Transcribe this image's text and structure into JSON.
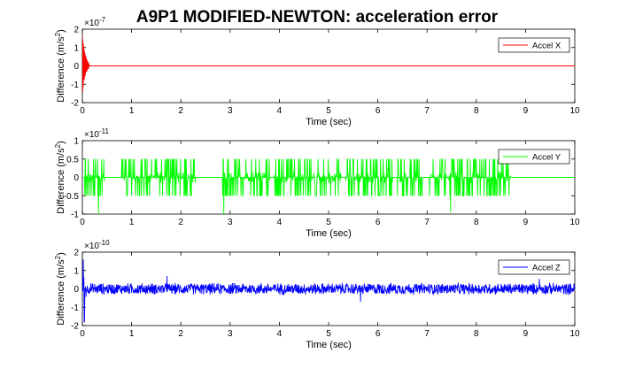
{
  "figure": {
    "title": "A9P1 MODIFIED-NEWTON: acceleration error"
  },
  "chart_data": [
    {
      "type": "line",
      "xlabel": "Time (sec)",
      "ylabel_main": "Difference (m/s",
      "ylabel_sup": "2",
      "ylabel_tail": ")",
      "exponent_label": "×10",
      "exponent_power": "-7",
      "xlim": [
        0,
        10
      ],
      "ylim": [
        -2,
        2
      ],
      "xticks": [
        "0",
        "1",
        "2",
        "3",
        "4",
        "5",
        "6",
        "7",
        "8",
        "9",
        "10"
      ],
      "yticks": [
        "-2",
        "-1",
        "0",
        "1",
        "2"
      ],
      "grid": false,
      "legend": "top-right",
      "series": [
        {
          "name": "Accel X",
          "color": "#ff0000",
          "pattern": "transient-decay",
          "x": [
            0,
            0.02,
            0.04,
            0.06,
            0.08,
            0.1,
            0.12,
            0.15,
            10
          ],
          "y": [
            -1.6,
            1.9,
            -1.5,
            1.2,
            -0.8,
            0.5,
            -0.2,
            0,
            0
          ]
        }
      ]
    },
    {
      "type": "line",
      "xlabel": "Time (sec)",
      "ylabel_main": "Difference (m/s",
      "ylabel_sup": "2",
      "ylabel_tail": ")",
      "exponent_label": "×10",
      "exponent_power": "-11",
      "xlim": [
        0,
        10
      ],
      "ylim": [
        -1,
        1
      ],
      "xticks": [
        "0",
        "1",
        "2",
        "3",
        "4",
        "5",
        "6",
        "7",
        "8",
        "9",
        "10"
      ],
      "yticks": [
        "-1",
        "-0.5",
        "0",
        "0.5",
        "1"
      ],
      "grid": false,
      "legend": "top-right",
      "series": [
        {
          "name": "Accel Y",
          "color": "#00ff00",
          "pattern": "intermittent-bursts",
          "amplitude": 0.5,
          "active_intervals": [
            [
              0.05,
              0.45
            ],
            [
              0.8,
              2.3
            ],
            [
              2.85,
              3.8
            ],
            [
              3.9,
              5.25
            ],
            [
              5.35,
              6.3
            ],
            [
              6.4,
              6.9
            ],
            [
              7.05,
              7.75
            ],
            [
              7.8,
              8.7
            ]
          ],
          "spikes": [
            {
              "x": 0.33,
              "y": -1.0
            },
            {
              "x": 2.87,
              "y": -1.0
            },
            {
              "x": 7.48,
              "y": -0.95
            }
          ],
          "zero_after": 8.7
        }
      ]
    },
    {
      "type": "line",
      "xlabel": "Time (sec)",
      "ylabel_main": "Difference (m/s",
      "ylabel_sup": "2",
      "ylabel_tail": ")",
      "exponent_label": "×10",
      "exponent_power": "-10",
      "xlim": [
        0,
        10
      ],
      "ylim": [
        -2,
        2
      ],
      "xticks": [
        "0",
        "1",
        "2",
        "3",
        "4",
        "5",
        "6",
        "7",
        "8",
        "9",
        "10"
      ],
      "yticks": [
        "-2",
        "-1",
        "0",
        "1",
        "2"
      ],
      "grid": false,
      "legend": "top-right",
      "series": [
        {
          "name": "Accel Z",
          "color": "#0000ff",
          "pattern": "continuous-noise",
          "amplitude": 0.35,
          "peaks": [
            {
              "x": 0.02,
              "y": 1.6
            },
            {
              "x": 0.04,
              "y": -1.8
            },
            {
              "x": 1.72,
              "y": 0.7
            },
            {
              "x": 5.65,
              "y": -0.7
            },
            {
              "x": 9.28,
              "y": 0.55
            }
          ]
        }
      ]
    }
  ]
}
